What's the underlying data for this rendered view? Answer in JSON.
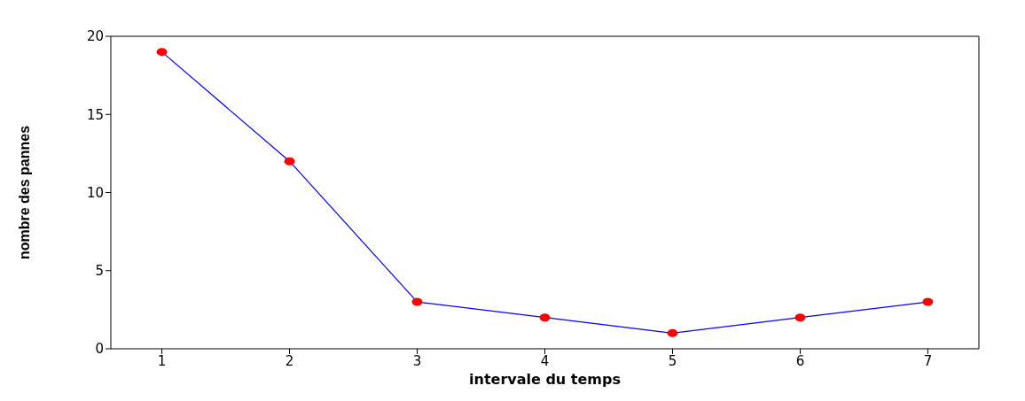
{
  "chart_data": {
    "type": "line",
    "xlabel": "intervale du temps",
    "ylabel": "nombre des pannes",
    "x": [
      1,
      2,
      3,
      4,
      5,
      6,
      7
    ],
    "series": [
      {
        "color": "#0000ff",
        "colors": [
          "#ff0000",
          "#ff0000",
          "#ff0000",
          "#ff0000",
          "#ff0000",
          "#ff0000",
          "#ff0000"
        ],
        "values": [
          19,
          12,
          3,
          2,
          1,
          2,
          3
        ]
      }
    ],
    "xlim": [
      0.6,
      7.4
    ],
    "xticks": [
      1,
      2,
      3,
      4,
      5,
      6,
      7
    ],
    "ylim": [
      0,
      20
    ],
    "yticks": [
      0,
      5,
      10,
      15,
      20
    ],
    "grid": false,
    "legend": false,
    "marker": "circle",
    "line_style": "solid"
  }
}
